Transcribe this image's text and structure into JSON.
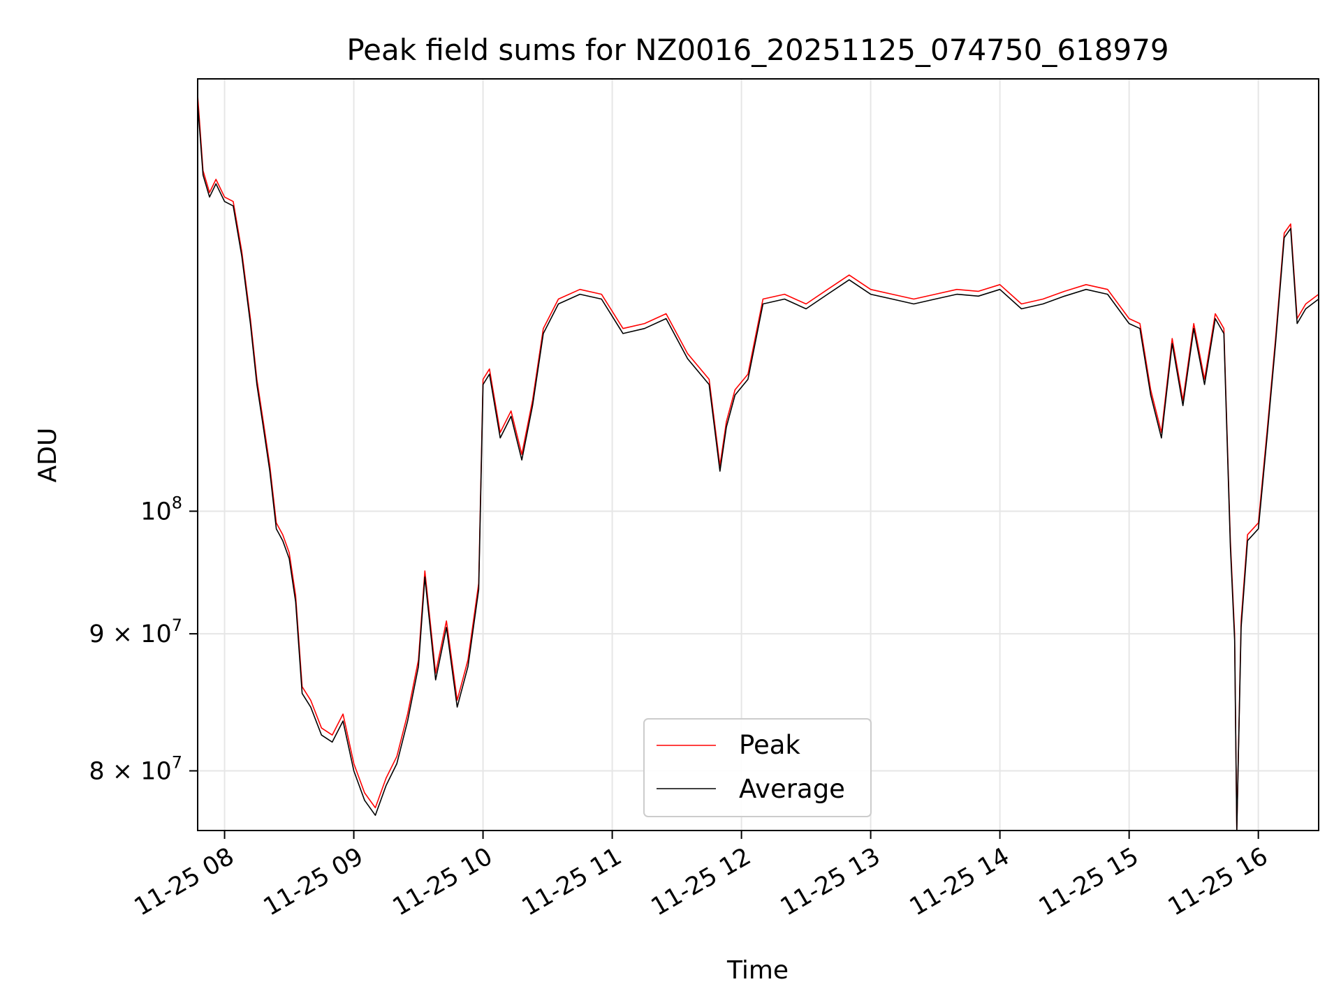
{
  "chart_data": {
    "type": "line",
    "title": "Peak field sums for NZ0016_20251125_074750_618979",
    "xlabel": "Time",
    "ylabel": "ADU",
    "y_scale": "log",
    "ylim": [
      76000000,
      145000000
    ],
    "xlim": [
      "2025-11-25 07:47:30",
      "2025-11-25 16:28:00"
    ],
    "grid": true,
    "legend_position": "lower-center",
    "x_ticks": [
      {
        "label": "11-25 08",
        "time": "2025-11-25 08:00"
      },
      {
        "label": "11-25 09",
        "time": "2025-11-25 09:00"
      },
      {
        "label": "11-25 10",
        "time": "2025-11-25 10:00"
      },
      {
        "label": "11-25 11",
        "time": "2025-11-25 11:00"
      },
      {
        "label": "11-25 12",
        "time": "2025-11-25 12:00"
      },
      {
        "label": "11-25 13",
        "time": "2025-11-25 13:00"
      },
      {
        "label": "11-25 14",
        "time": "2025-11-25 14:00"
      },
      {
        "label": "11-25 15",
        "time": "2025-11-25 15:00"
      },
      {
        "label": "11-25 16",
        "time": "2025-11-25 16:00"
      }
    ],
    "y_ticks": [
      {
        "value": 80000000,
        "mantissa": "8",
        "exponent": "7"
      },
      {
        "value": 90000000,
        "mantissa": "9",
        "exponent": "7"
      },
      {
        "value": 100000000,
        "base": "10",
        "exponent": "8"
      }
    ],
    "series": [
      {
        "name": "Peak",
        "color": "#ff0000",
        "x": [
          "2025-11-25 07:47",
          "2025-11-25 07:50",
          "2025-11-25 07:53",
          "2025-11-25 07:56",
          "2025-11-25 08:00",
          "2025-11-25 08:04",
          "2025-11-25 08:08",
          "2025-11-25 08:12",
          "2025-11-25 08:15",
          "2025-11-25 08:18",
          "2025-11-25 08:21",
          "2025-11-25 08:24",
          "2025-11-25 08:27",
          "2025-11-25 08:30",
          "2025-11-25 08:33",
          "2025-11-25 08:36",
          "2025-11-25 08:40",
          "2025-11-25 08:45",
          "2025-11-25 08:50",
          "2025-11-25 08:55",
          "2025-11-25 09:00",
          "2025-11-25 09:05",
          "2025-11-25 09:10",
          "2025-11-25 09:15",
          "2025-11-25 09:20",
          "2025-11-25 09:25",
          "2025-11-25 09:30",
          "2025-11-25 09:33",
          "2025-11-25 09:38",
          "2025-11-25 09:43",
          "2025-11-25 09:48",
          "2025-11-25 09:53",
          "2025-11-25 09:58",
          "2025-11-25 10:00",
          "2025-11-25 10:03",
          "2025-11-25 10:08",
          "2025-11-25 10:13",
          "2025-11-25 10:18",
          "2025-11-25 10:23",
          "2025-11-25 10:28",
          "2025-11-25 10:35",
          "2025-11-25 10:45",
          "2025-11-25 10:55",
          "2025-11-25 11:05",
          "2025-11-25 11:15",
          "2025-11-25 11:25",
          "2025-11-25 11:35",
          "2025-11-25 11:45",
          "2025-11-25 11:50",
          "2025-11-25 11:53",
          "2025-11-25 11:57",
          "2025-11-25 12:03",
          "2025-11-25 12:10",
          "2025-11-25 12:20",
          "2025-11-25 12:30",
          "2025-11-25 12:40",
          "2025-11-25 12:50",
          "2025-11-25 13:00",
          "2025-11-25 13:10",
          "2025-11-25 13:20",
          "2025-11-25 13:30",
          "2025-11-25 13:40",
          "2025-11-25 13:50",
          "2025-11-25 14:00",
          "2025-11-25 14:10",
          "2025-11-25 14:20",
          "2025-11-25 14:30",
          "2025-11-25 14:40",
          "2025-11-25 14:50",
          "2025-11-25 15:00",
          "2025-11-25 15:05",
          "2025-11-25 15:10",
          "2025-11-25 15:15",
          "2025-11-25 15:20",
          "2025-11-25 15:25",
          "2025-11-25 15:30",
          "2025-11-25 15:35",
          "2025-11-25 15:40",
          "2025-11-25 15:44",
          "2025-11-25 15:47",
          "2025-11-25 15:49",
          "2025-11-25 15:50",
          "2025-11-25 15:52",
          "2025-11-25 15:55",
          "2025-11-25 16:00",
          "2025-11-25 16:04",
          "2025-11-25 16:08",
          "2025-11-25 16:12",
          "2025-11-25 16:15",
          "2025-11-25 16:18",
          "2025-11-25 16:22",
          "2025-11-25 16:28"
        ],
        "values": [
          143000000,
          134000000,
          131500000,
          133000000,
          131000000,
          130500000,
          125000000,
          118000000,
          112000000,
          108000000,
          104000000,
          99000000,
          98000000,
          96500000,
          93000000,
          86000000,
          85000000,
          83000000,
          82500000,
          84000000,
          80500000,
          78500000,
          77500000,
          79500000,
          81000000,
          84000000,
          88000000,
          95000000,
          87000000,
          91000000,
          85000000,
          88000000,
          94000000,
          112000000,
          113000000,
          107000000,
          109000000,
          105000000,
          110000000,
          117000000,
          120000000,
          121000000,
          120500000,
          117000000,
          117500000,
          118500000,
          114500000,
          112000000,
          104000000,
          108000000,
          111000000,
          112500000,
          120000000,
          120500000,
          119500000,
          121000000,
          122500000,
          121000000,
          120500000,
          120000000,
          120500000,
          121000000,
          120800000,
          121500000,
          119500000,
          120000000,
          120800000,
          121500000,
          121000000,
          118000000,
          117500000,
          111000000,
          107000000,
          116000000,
          110000000,
          117500000,
          112000000,
          118500000,
          117000000,
          97500000,
          90000000,
          76000000,
          91000000,
          98000000,
          99000000,
          107000000,
          116000000,
          127000000,
          128000000,
          118000000,
          119500000,
          120500000
        ]
      },
      {
        "name": "Average",
        "color": "#000000",
        "x": [
          "2025-11-25 07:47",
          "2025-11-25 07:50",
          "2025-11-25 07:53",
          "2025-11-25 07:56",
          "2025-11-25 08:00",
          "2025-11-25 08:04",
          "2025-11-25 08:08",
          "2025-11-25 08:12",
          "2025-11-25 08:15",
          "2025-11-25 08:18",
          "2025-11-25 08:21",
          "2025-11-25 08:24",
          "2025-11-25 08:27",
          "2025-11-25 08:30",
          "2025-11-25 08:33",
          "2025-11-25 08:36",
          "2025-11-25 08:40",
          "2025-11-25 08:45",
          "2025-11-25 08:50",
          "2025-11-25 08:55",
          "2025-11-25 09:00",
          "2025-11-25 09:05",
          "2025-11-25 09:10",
          "2025-11-25 09:15",
          "2025-11-25 09:20",
          "2025-11-25 09:25",
          "2025-11-25 09:30",
          "2025-11-25 09:33",
          "2025-11-25 09:38",
          "2025-11-25 09:43",
          "2025-11-25 09:48",
          "2025-11-25 09:53",
          "2025-11-25 09:58",
          "2025-11-25 10:00",
          "2025-11-25 10:03",
          "2025-11-25 10:08",
          "2025-11-25 10:13",
          "2025-11-25 10:18",
          "2025-11-25 10:23",
          "2025-11-25 10:28",
          "2025-11-25 10:35",
          "2025-11-25 10:45",
          "2025-11-25 10:55",
          "2025-11-25 11:05",
          "2025-11-25 11:15",
          "2025-11-25 11:25",
          "2025-11-25 11:35",
          "2025-11-25 11:45",
          "2025-11-25 11:50",
          "2025-11-25 11:53",
          "2025-11-25 11:57",
          "2025-11-25 12:03",
          "2025-11-25 12:10",
          "2025-11-25 12:20",
          "2025-11-25 12:30",
          "2025-11-25 12:40",
          "2025-11-25 12:50",
          "2025-11-25 13:00",
          "2025-11-25 13:10",
          "2025-11-25 13:20",
          "2025-11-25 13:30",
          "2025-11-25 13:40",
          "2025-11-25 13:50",
          "2025-11-25 14:00",
          "2025-11-25 14:10",
          "2025-11-25 14:20",
          "2025-11-25 14:30",
          "2025-11-25 14:40",
          "2025-11-25 14:50",
          "2025-11-25 15:00",
          "2025-11-25 15:05",
          "2025-11-25 15:10",
          "2025-11-25 15:15",
          "2025-11-25 15:20",
          "2025-11-25 15:25",
          "2025-11-25 15:30",
          "2025-11-25 15:35",
          "2025-11-25 15:40",
          "2025-11-25 15:44",
          "2025-11-25 15:47",
          "2025-11-25 15:49",
          "2025-11-25 15:50",
          "2025-11-25 15:52",
          "2025-11-25 15:55",
          "2025-11-25 16:00",
          "2025-11-25 16:04",
          "2025-11-25 16:08",
          "2025-11-25 16:12",
          "2025-11-25 16:15",
          "2025-11-25 16:18",
          "2025-11-25 16:22",
          "2025-11-25 16:28"
        ],
        "values": [
          142000000,
          133500000,
          131000000,
          132500000,
          130500000,
          130000000,
          124500000,
          117500000,
          111500000,
          107500000,
          103500000,
          98500000,
          97500000,
          96000000,
          92500000,
          85500000,
          84500000,
          82500000,
          82000000,
          83500000,
          80000000,
          78000000,
          77000000,
          79000000,
          80500000,
          83500000,
          87500000,
          94500000,
          86500000,
          90500000,
          84500000,
          87500000,
          93500000,
          111500000,
          112500000,
          106500000,
          108500000,
          104500000,
          109500000,
          116500000,
          119500000,
          120500000,
          120000000,
          116500000,
          117000000,
          118000000,
          114000000,
          111500000,
          103500000,
          107500000,
          110500000,
          112000000,
          119500000,
          120000000,
          119000000,
          120500000,
          122000000,
          120500000,
          120000000,
          119500000,
          120000000,
          120500000,
          120300000,
          121000000,
          119000000,
          119500000,
          120300000,
          121000000,
          120500000,
          117500000,
          117000000,
          110500000,
          106500000,
          115500000,
          109500000,
          117000000,
          111500000,
          118000000,
          116500000,
          97000000,
          89500000,
          75500000,
          90500000,
          97500000,
          98500000,
          106500000,
          115500000,
          126500000,
          127500000,
          117500000,
          119000000,
          120000000
        ]
      }
    ]
  }
}
